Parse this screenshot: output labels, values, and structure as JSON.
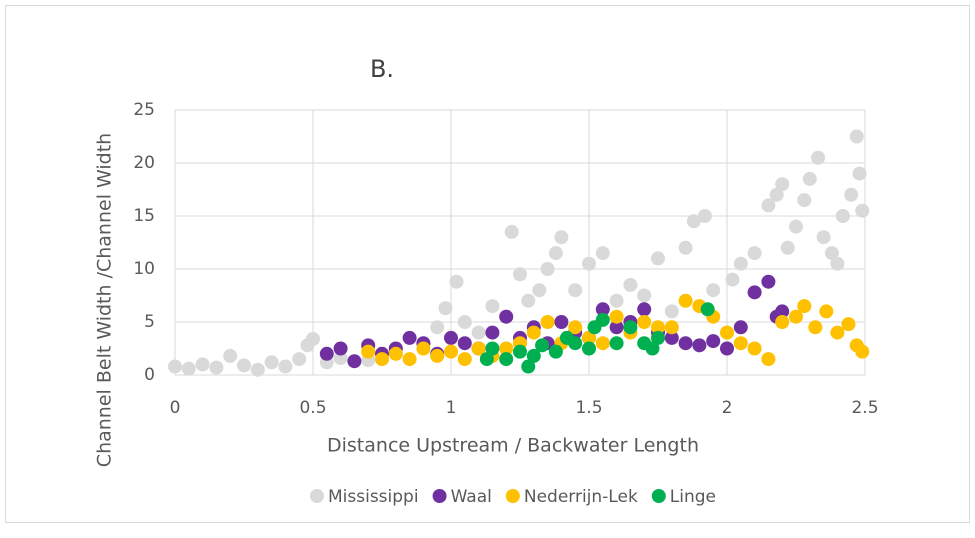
{
  "chart_data": {
    "type": "scatter",
    "title": "B.",
    "x_label": "Distance Upstream / Backwater Length",
    "y_label": "Channel Belt Width /Channel Width",
    "xlim": [
      0,
      2.5
    ],
    "xticks": [
      0,
      0.5,
      1,
      1.5,
      2,
      2.5
    ],
    "ylim": [
      0,
      25
    ],
    "yticks": [
      0,
      5,
      10,
      15,
      20,
      25
    ],
    "grid": true,
    "legend": "bottom",
    "series": [
      {
        "name": "Mississippi",
        "color": "#d9d9d9",
        "x": [
          0,
          0.05,
          0.1,
          0.15,
          0.2,
          0.25,
          0.3,
          0.35,
          0.4,
          0.45,
          0.48,
          0.5,
          0.55,
          0.6,
          0.7,
          0.8,
          0.9,
          0.95,
          0.98,
          1.02,
          1.05,
          1.1,
          1.15,
          1.2,
          1.22,
          1.25,
          1.28,
          1.32,
          1.35,
          1.38,
          1.4,
          1.45,
          1.5,
          1.55,
          1.6,
          1.65,
          1.7,
          1.75,
          1.8,
          1.85,
          1.88,
          1.92,
          1.95,
          2.0,
          2.02,
          2.05,
          2.1,
          2.15,
          2.18,
          2.2,
          2.22,
          2.25,
          2.28,
          2.3,
          2.33,
          2.35,
          2.38,
          2.4,
          2.42,
          2.45,
          2.47,
          2.48,
          2.49
        ],
        "y": [
          0.8,
          0.6,
          1,
          0.7,
          1.8,
          0.9,
          0.5,
          1.2,
          0.8,
          1.5,
          2.8,
          3.4,
          1.2,
          1.6,
          1.4,
          2,
          3,
          4.5,
          6.3,
          8.8,
          5,
          4,
          6.5,
          5.5,
          13.5,
          9.5,
          7,
          8,
          10,
          11.5,
          13,
          8,
          10.5,
          11.5,
          7,
          8.5,
          7.5,
          11,
          6,
          12,
          14.5,
          15,
          8,
          4,
          9,
          10.5,
          11.5,
          16,
          17,
          18,
          12,
          14,
          16.5,
          18.5,
          20.5,
          13,
          11.5,
          10.5,
          15,
          17,
          22.5,
          19,
          15.5
        ]
      },
      {
        "name": "Waal",
        "color": "#7030a0",
        "x": [
          0.55,
          0.6,
          0.65,
          0.7,
          0.75,
          0.8,
          0.85,
          0.9,
          0.95,
          1.0,
          1.05,
          1.1,
          1.15,
          1.2,
          1.25,
          1.3,
          1.35,
          1.4,
          1.45,
          1.5,
          1.55,
          1.6,
          1.65,
          1.7,
          1.75,
          1.8,
          1.85,
          1.9,
          1.95,
          2.0,
          2.05,
          2.1,
          2.15,
          2.18,
          2.2
        ],
        "y": [
          2,
          2.5,
          1.3,
          2.8,
          2,
          2.5,
          3.5,
          3,
          2,
          3.5,
          3,
          2.5,
          4,
          5.5,
          3.5,
          4.5,
          3,
          5,
          4,
          3.5,
          6.2,
          4.5,
          5,
          6.2,
          4,
          3.5,
          3,
          2.8,
          3.2,
          2.5,
          4.5,
          7.8,
          8.8,
          5.5,
          6
        ]
      },
      {
        "name": "Nederrijn-Lek",
        "color": "#ffc000",
        "x": [
          0.7,
          0.75,
          0.8,
          0.85,
          0.9,
          0.95,
          1.0,
          1.05,
          1.1,
          1.15,
          1.2,
          1.25,
          1.3,
          1.35,
          1.4,
          1.45,
          1.5,
          1.55,
          1.6,
          1.65,
          1.7,
          1.75,
          1.8,
          1.85,
          1.9,
          1.95,
          2.0,
          2.05,
          2.1,
          2.15,
          2.2,
          2.25,
          2.28,
          2.32,
          2.36,
          2.4,
          2.44,
          2.47,
          2.49
        ],
        "y": [
          2.2,
          1.5,
          2,
          1.5,
          2.5,
          1.8,
          2.2,
          1.5,
          2.5,
          1.8,
          2.5,
          3,
          4,
          5,
          3,
          4.5,
          3.5,
          3,
          5.5,
          4,
          5,
          4.5,
          4.5,
          7,
          6.5,
          5.5,
          4,
          3,
          2.5,
          1.5,
          5,
          5.5,
          6.5,
          4.5,
          6,
          4,
          4.8,
          2.8,
          2.2
        ]
      },
      {
        "name": "Linge",
        "color": "#00b050",
        "x": [
          1.13,
          1.15,
          1.2,
          1.25,
          1.28,
          1.3,
          1.33,
          1.38,
          1.42,
          1.45,
          1.5,
          1.52,
          1.55,
          1.6,
          1.65,
          1.7,
          1.73,
          1.75,
          1.93
        ],
        "y": [
          1.5,
          2.5,
          1.5,
          2.2,
          0.8,
          1.8,
          2.8,
          2.2,
          3.5,
          3,
          2.5,
          4.5,
          5.2,
          3,
          4.5,
          3,
          2.5,
          3.5,
          6.2
        ]
      }
    ]
  }
}
